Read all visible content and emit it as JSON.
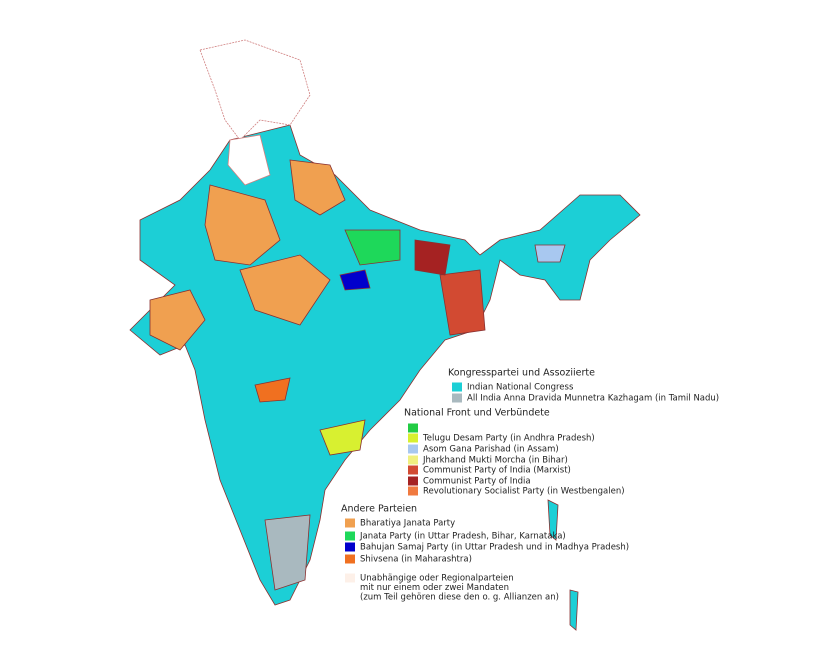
{
  "legend": {
    "groups": [
      {
        "title": "Kongresspartei und Assoziierte",
        "items": [
          {
            "label": "Indian National Congress",
            "color": "#1ccfd6"
          },
          {
            "label": "All India Anna Dravida Munnetra Kazhagam (in Tamil Nadu)",
            "color": "#a9b9bf"
          }
        ]
      },
      {
        "title": "National Front und Verbündete",
        "items": [
          {
            "color": "#22cc44"
          },
          {
            "label": "Telugu Desam Party (in Andhra Pradesh)",
            "color": "#d8f030"
          },
          {
            "label": "Asom Gana Parishad (in Assam)",
            "color": "#a8c8f0"
          },
          {
            "label": "Jharkhand Mukti Morcha (in Bihar)",
            "color": "#f0f080"
          },
          {
            "label": "Communist Party of India (Marxist)",
            "color": "#d24a32"
          },
          {
            "label": "Communist Party of India",
            "color": "#a52222"
          },
          {
            "label": "Revolutionary Socialist Party (in Westbengalen)",
            "color": "#f07a40"
          }
        ]
      },
      {
        "title": "Andere Parteien",
        "items": [
          {
            "label": "Bharatiya Janata Party",
            "color": "#f0a050"
          },
          {
            "label": "Janata Party (in Uttar Pradesh, Bihar, Karnataka)",
            "color": "#1ed85a"
          },
          {
            "label": "Bahujan Samaj Party (in Uttar Pradesh und in Madhya Pradesh)",
            "color": "#0000cc"
          },
          {
            "label": "Shivsena (in Maharashtra)",
            "color": "#f07020"
          },
          {
            "lines": [
              "Unabhängige oder Regionalparteien",
              "mit nur einem oder zwei Mandaten",
              "(zum Teil gehören diese den o. g. Allianzen an)"
            ],
            "color": "#fdf0e8"
          }
        ]
      }
    ]
  }
}
